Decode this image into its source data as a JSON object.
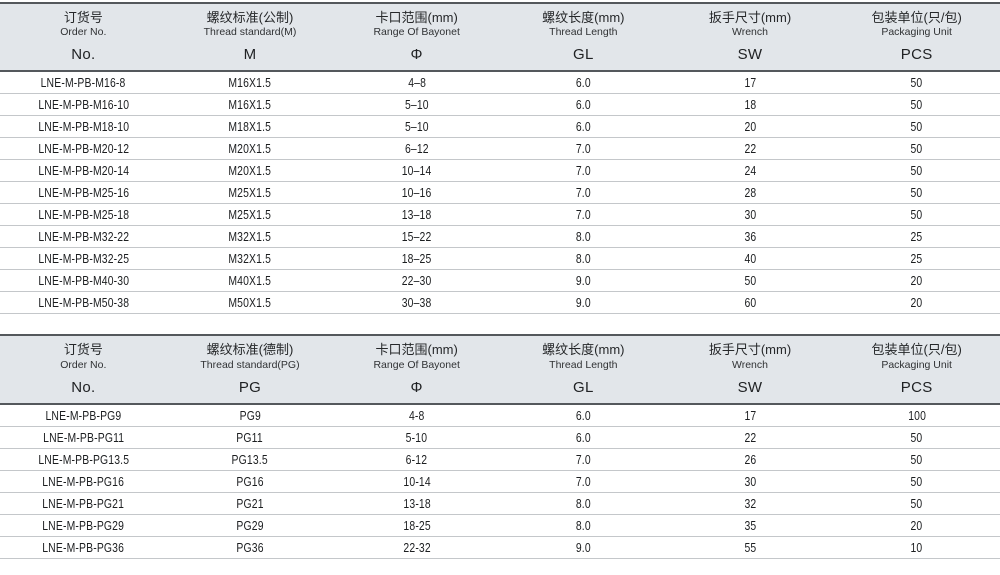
{
  "page": {
    "type": "product-specification-tables",
    "description_visible": false
  },
  "colors": {
    "header_bg": "#e2e6ea",
    "dark_line": "#54585c",
    "row_line": "#c4c7ca",
    "text_dark": "#1c1e20",
    "text_head": "#26282a"
  },
  "tables": [
    {
      "name": "metric-thread-table",
      "columns": [
        {
          "cn": "订货号",
          "en": "Order No.",
          "symbol": "No."
        },
        {
          "cn": "螺纹标准(公制)",
          "en": "Thread standard(M)",
          "symbol": "M"
        },
        {
          "cn": "卡口范围(mm)",
          "en": "Range Of Bayonet",
          "symbol": "Φ"
        },
        {
          "cn": "螺纹长度(mm)",
          "en": "Thread Length",
          "symbol": "GL"
        },
        {
          "cn": "扳手尺寸(mm)",
          "en": "Wrench",
          "symbol": "SW"
        },
        {
          "cn": "包装单位(只/包)",
          "en": "Packaging Unit",
          "symbol": "PCS"
        }
      ],
      "rows": [
        [
          "LNE-M-PB-M16-8",
          "M16X1.5",
          "4–8",
          "6.0",
          "17",
          "50"
        ],
        [
          "LNE-M-PB-M16-10",
          "M16X1.5",
          "5–10",
          "6.0",
          "18",
          "50"
        ],
        [
          "LNE-M-PB-M18-10",
          "M18X1.5",
          "5–10",
          "6.0",
          "20",
          "50"
        ],
        [
          "LNE-M-PB-M20-12",
          "M20X1.5",
          "6–12",
          "7.0",
          "22",
          "50"
        ],
        [
          "LNE-M-PB-M20-14",
          "M20X1.5",
          "10–14",
          "7.0",
          "24",
          "50"
        ],
        [
          "LNE-M-PB-M25-16",
          "M25X1.5",
          "10–16",
          "7.0",
          "28",
          "50"
        ],
        [
          "LNE-M-PB-M25-18",
          "M25X1.5",
          "13–18",
          "7.0",
          "30",
          "50"
        ],
        [
          "LNE-M-PB-M32-22",
          "M32X1.5",
          "15–22",
          "8.0",
          "36",
          "25"
        ],
        [
          "LNE-M-PB-M32-25",
          "M32X1.5",
          "18–25",
          "8.0",
          "40",
          "25"
        ],
        [
          "LNE-M-PB-M40-30",
          "M40X1.5",
          "22–30",
          "9.0",
          "50",
          "20"
        ],
        [
          "LNE-M-PB-M50-38",
          "M50X1.5",
          "30–38",
          "9.0",
          "60",
          "20"
        ]
      ]
    },
    {
      "name": "pg-thread-table",
      "columns": [
        {
          "cn": "订货号",
          "en": "Order No.",
          "symbol": "No."
        },
        {
          "cn": "螺纹标准(德制)",
          "en": "Thread standard(PG)",
          "symbol": "PG"
        },
        {
          "cn": "卡口范围(mm)",
          "en": "Range Of Bayonet",
          "symbol": "Φ"
        },
        {
          "cn": "螺纹长度(mm)",
          "en": "Thread Length",
          "symbol": "GL"
        },
        {
          "cn": "扳手尺寸(mm)",
          "en": "Wrench",
          "symbol": "SW"
        },
        {
          "cn": "包装单位(只/包)",
          "en": "Packaging Unit",
          "symbol": "PCS"
        }
      ],
      "rows": [
        [
          "LNE-M-PB-PG9",
          "PG9",
          "4-8",
          "6.0",
          "17",
          "100"
        ],
        [
          "LNE-M-PB-PG11",
          "PG11",
          "5-10",
          "6.0",
          "22",
          "50"
        ],
        [
          "LNE-M-PB-PG13.5",
          "PG13.5",
          "6-12",
          "7.0",
          "26",
          "50"
        ],
        [
          "LNE-M-PB-PG16",
          "PG16",
          "10-14",
          "7.0",
          "30",
          "50"
        ],
        [
          "LNE-M-PB-PG21",
          "PG21",
          "13-18",
          "8.0",
          "32",
          "50"
        ],
        [
          "LNE-M-PB-PG29",
          "PG29",
          "18-25",
          "8.0",
          "35",
          "20"
        ],
        [
          "LNE-M-PB-PG36",
          "PG36",
          "22-32",
          "9.0",
          "55",
          "10"
        ]
      ]
    }
  ]
}
